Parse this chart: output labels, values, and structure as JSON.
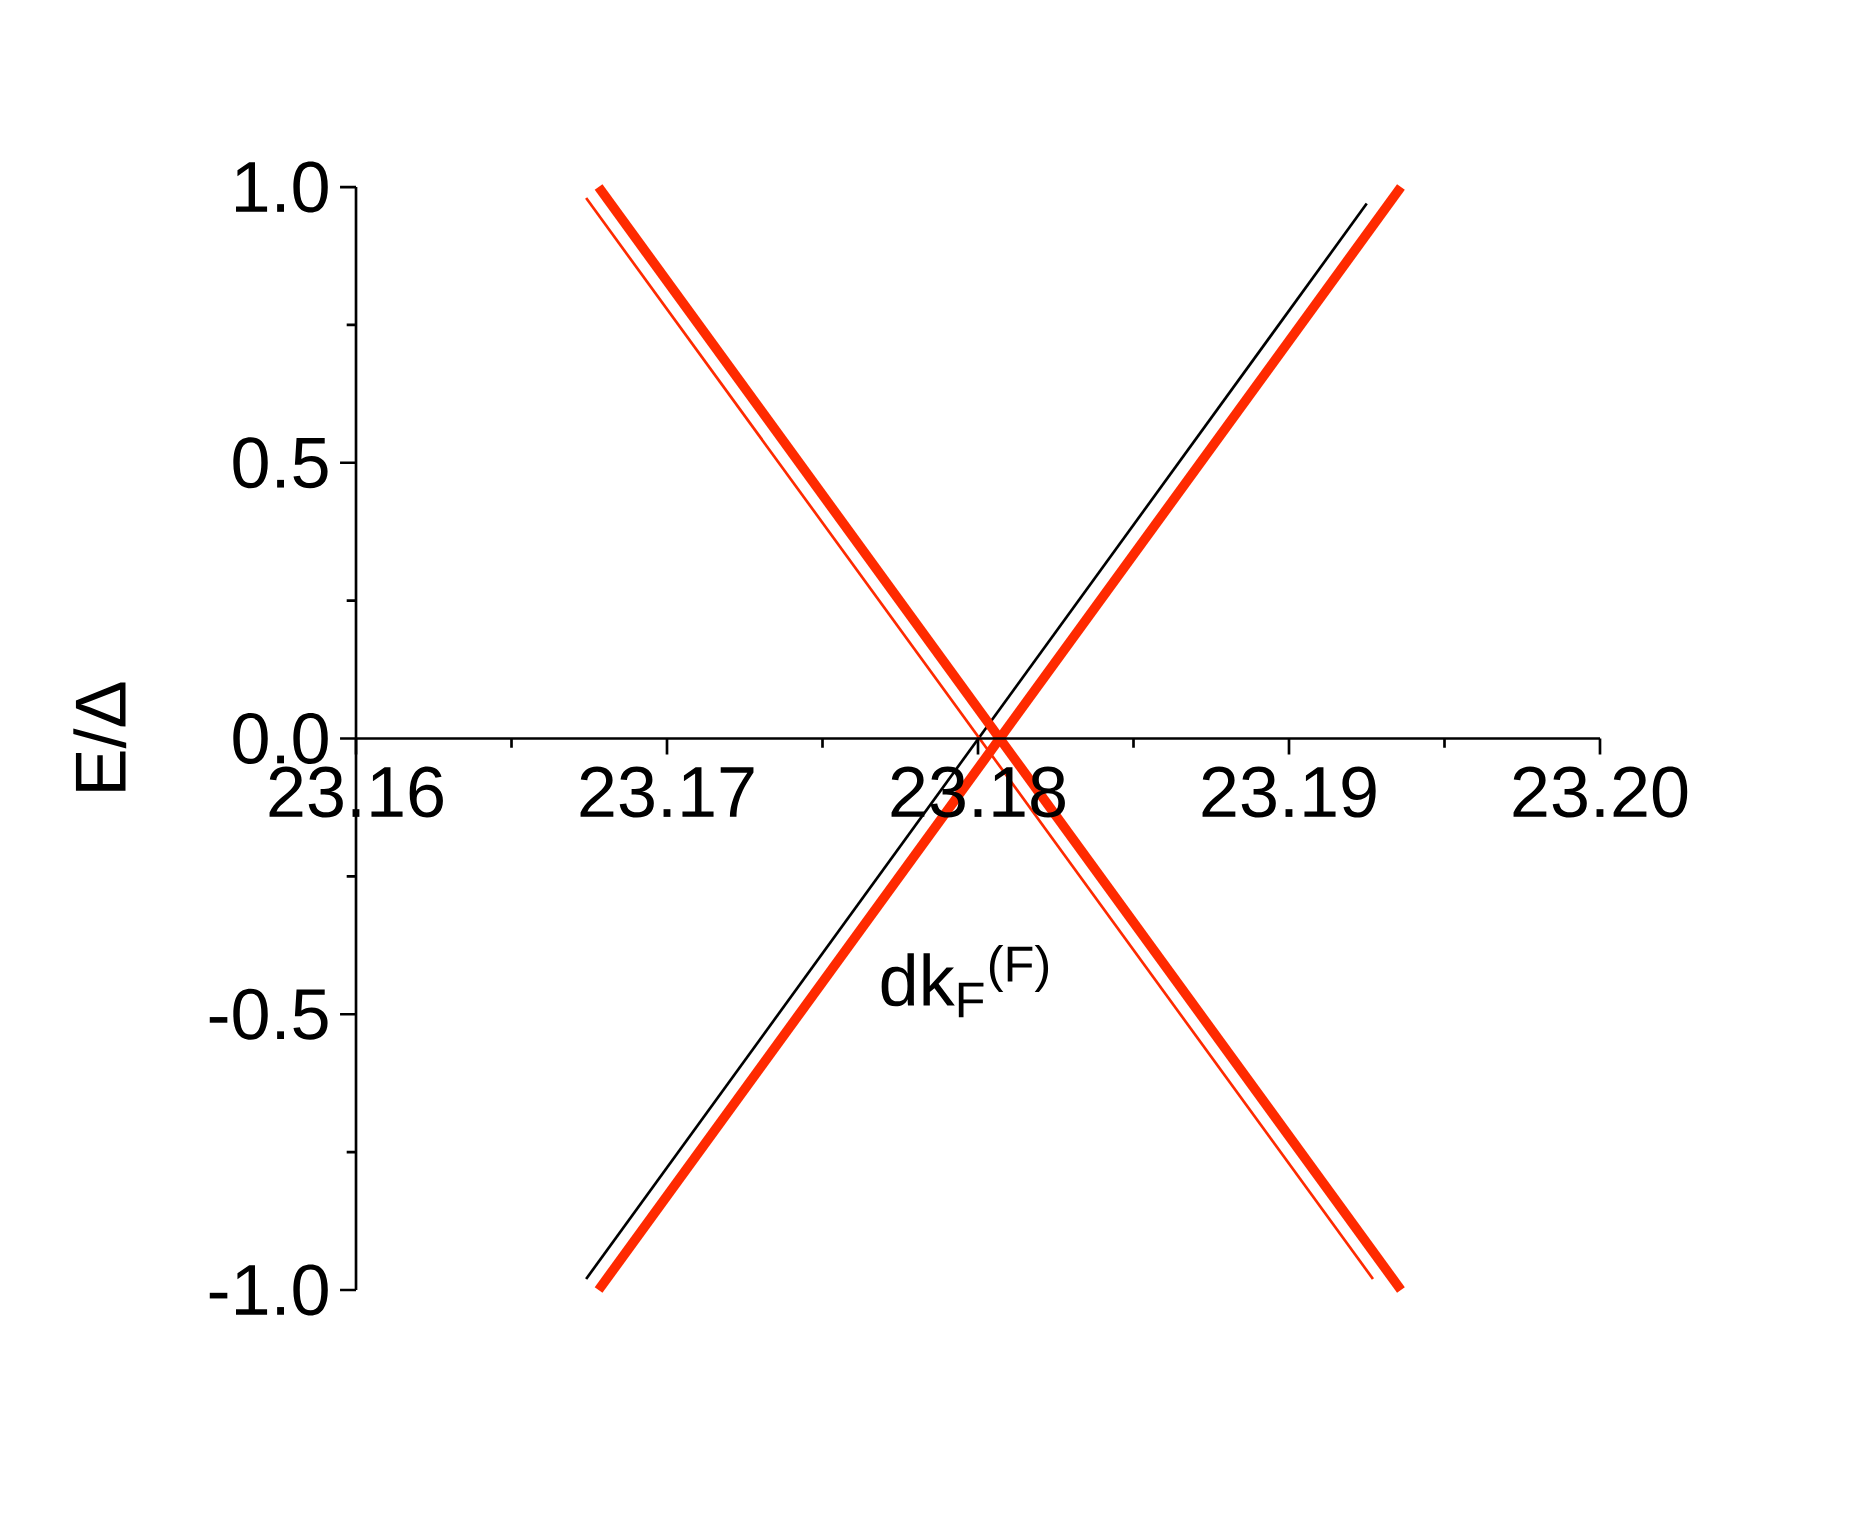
{
  "chart_data": {
    "type": "line",
    "xlabel": "dk$_{F}$$^{(F)}$",
    "ylabel": "E/Δ",
    "xlim": [
      23.16,
      23.2
    ],
    "ylim": [
      -1.0,
      1.0
    ],
    "xticks": [
      {
        "value": 23.16,
        "label": "23.16"
      },
      {
        "value": 23.17,
        "label": "23.17"
      },
      {
        "value": 23.18,
        "label": "23.18"
      },
      {
        "value": 23.19,
        "label": "23.19"
      },
      {
        "value": 23.2,
        "label": "23.20"
      }
    ],
    "yticks": [
      {
        "value": -1.0,
        "label": "-1.0"
      },
      {
        "value": -0.5,
        "label": "-0.5"
      },
      {
        "value": 0.0,
        "label": "0.0"
      },
      {
        "value": 0.5,
        "label": "0.5"
      },
      {
        "value": 1.0,
        "label": "1.0"
      }
    ],
    "series": [
      {
        "color": "#000000",
        "x": [
          23.1674,
          23.1925
        ],
        "values": [
          -0.98,
          0.97
        ]
      },
      {
        "color": "#ff2a00",
        "x": [
          23.1674,
          23.1927
        ],
        "values": [
          0.98,
          -0.98
        ]
      },
      {
        "color": "#ff2a00",
        "x": [
          23.1678,
          23.1936
        ],
        "values": [
          -1.0,
          1.0
        ]
      },
      {
        "color": "#ff2a00",
        "x": [
          23.1678,
          23.1936
        ],
        "values": [
          1.0,
          -1.0
        ]
      }
    ]
  }
}
